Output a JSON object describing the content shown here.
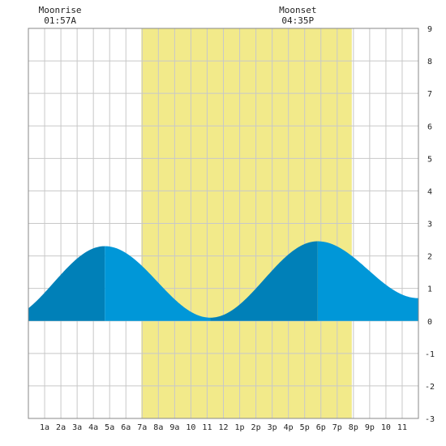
{
  "chart_data": {
    "type": "area",
    "title": "",
    "xlabel": "",
    "ylabel": "",
    "xlim": [
      0,
      24
    ],
    "ylim": [
      -3,
      9
    ],
    "y_ticks": [
      -3,
      -2,
      -1,
      0,
      1,
      2,
      3,
      4,
      5,
      6,
      7,
      8,
      9
    ],
    "x_tick_labels": [
      "1a",
      "2a",
      "3a",
      "4a",
      "5a",
      "6a",
      "7a",
      "8a",
      "9a",
      "10",
      "11",
      "12",
      "1p",
      "2p",
      "3p",
      "4p",
      "5p",
      "6p",
      "7p",
      "8p",
      "9p",
      "10",
      "11"
    ],
    "grid": true,
    "daylight": {
      "start_hour": 6.95,
      "end_hour": 19.9,
      "color": "#f2ea8a"
    },
    "moon_events": [
      {
        "label": "Moonrise",
        "time": "01:57A",
        "hour": 1.95
      },
      {
        "label": "Moonset",
        "time": "04:35P",
        "hour": 16.58
      }
    ],
    "tide_extremes": [
      {
        "hour": -1.6,
        "height": 0.05
      },
      {
        "hour": 4.7,
        "height": 2.3
      },
      {
        "hour": 11.2,
        "height": 0.1
      },
      {
        "hour": 17.8,
        "height": 2.45
      },
      {
        "hour": 24.0,
        "height": 0.7
      }
    ],
    "colors": {
      "flood": "#0080b8",
      "ebb": "#0097d8",
      "grid": "#c8c8c8",
      "border": "#888888"
    }
  }
}
